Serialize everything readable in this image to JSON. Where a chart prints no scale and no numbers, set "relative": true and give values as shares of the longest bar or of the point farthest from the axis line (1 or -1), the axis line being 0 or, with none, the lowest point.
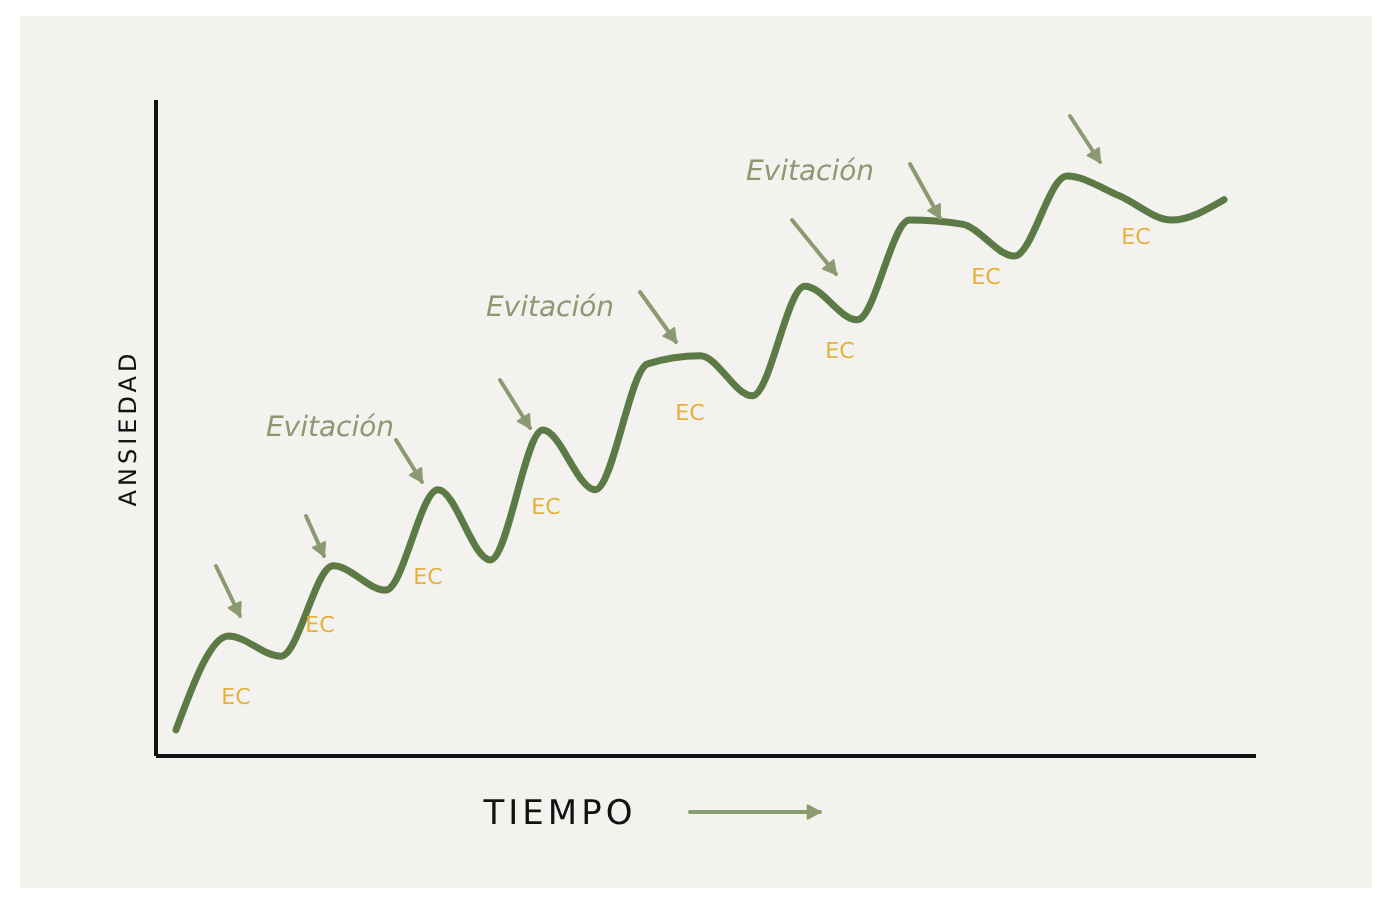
{
  "chart_data": {
    "type": "line",
    "relative": true,
    "xlabel": "TIEMPO",
    "ylabel": "ANSIEDAD",
    "categories": [
      null,
      null,
      null,
      null,
      null,
      null,
      null,
      null,
      null,
      null,
      null,
      null,
      null,
      null,
      null,
      null,
      null,
      null,
      null,
      null,
      null
    ],
    "series": [
      {
        "color": "#5b7a46",
        "values": [
          0.045,
          0.207,
          0.172,
          0.328,
          0.286,
          0.459,
          0.338,
          0.562,
          0.459,
          0.676,
          0.69,
          0.621,
          0.81,
          0.752,
          0.924,
          0.917,
          0.862,
          1,
          0.966,
          0.924,
          0.959
        ]
      }
    ],
    "annotations": [
      "Evitación",
      "Evitación",
      "Evitación",
      "EC",
      "EC",
      "EC",
      "EC",
      "EC",
      "EC",
      "EC",
      "EC"
    ],
    "marker": "none",
    "line_style": "solid"
  }
}
